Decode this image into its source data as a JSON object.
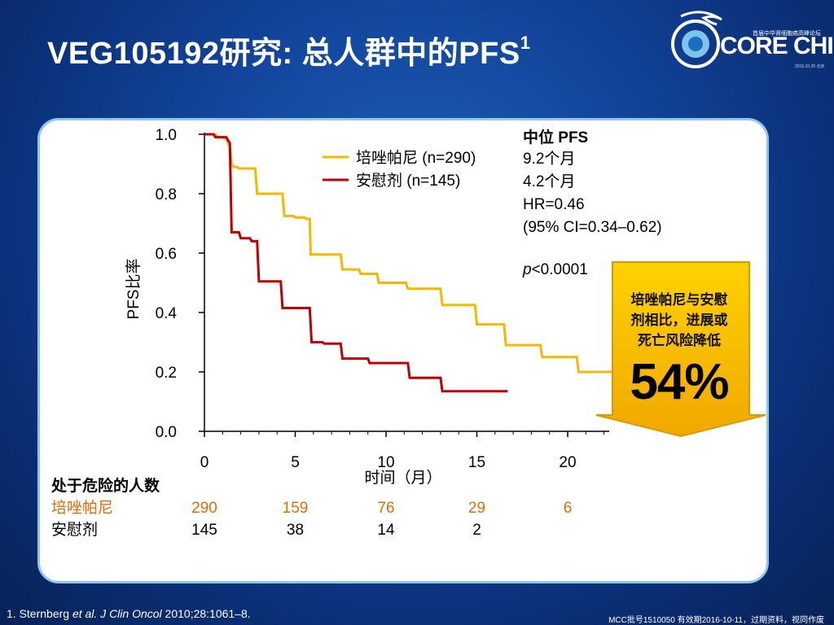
{
  "title": {
    "main": "VEG105192研究: 总人群中的PFS",
    "sup": "1"
  },
  "logo": {
    "core": "CORE CHINA",
    "sub": "首届中华肾细胞癌高峰论坛",
    "date": "2015.10.25 北京"
  },
  "colors": {
    "pazopanib": "#f5b800",
    "placebo": "#c00000",
    "orange_text": "#e36c09",
    "panel_border": "#8ec6ec"
  },
  "legend": {
    "pazopanib": "培唑帕尼 (n=290)",
    "placebo": "安慰剂  (n=145)"
  },
  "median": {
    "header": "中位 PFS",
    "pazopanib": "9.2个月",
    "placebo": "4.2个月",
    "hr": "HR=0.46",
    "ci": "(95% CI=0.34–0.62)",
    "p_italic": "p",
    "p_rest": "<0.0001"
  },
  "callout": {
    "text_line1": "培唑帕尼与安慰",
    "text_line2": "剂相比，进展或",
    "text_line3": "死亡风险降低",
    "value": "54%"
  },
  "at_risk": {
    "header": "处于危险的人数",
    "rows": [
      {
        "label": "培唑帕尼",
        "values": [
          "290",
          "159",
          "76",
          "29",
          "6"
        ]
      },
      {
        "label": "安慰剂",
        "values": [
          "145",
          "38",
          "14",
          "2"
        ]
      }
    ]
  },
  "chart_data": {
    "type": "line",
    "xlabel": "时间（月）",
    "ylabel": "PFS比率",
    "xlim": [
      0,
      22.5
    ],
    "ylim": [
      0,
      1.0
    ],
    "x_ticks": [
      "0",
      "5",
      "10",
      "15",
      "20"
    ],
    "y_ticks": [
      "0.0",
      "0.2",
      "0.4",
      "0.6",
      "0.8",
      "1.0"
    ],
    "series": [
      {
        "name": "培唑帕尼",
        "color": "#f5b800",
        "points": [
          [
            0,
            1.0
          ],
          [
            0.6,
            1.0
          ],
          [
            0.7,
            0.99
          ],
          [
            1.0,
            0.99
          ],
          [
            1.2,
            0.985
          ],
          [
            1.3,
            0.97
          ],
          [
            1.4,
            0.96
          ],
          [
            1.5,
            0.9
          ],
          [
            1.6,
            0.89
          ],
          [
            1.8,
            0.89
          ],
          [
            1.9,
            0.885
          ],
          [
            2.8,
            0.885
          ],
          [
            2.9,
            0.8
          ],
          [
            4.3,
            0.8
          ],
          [
            4.4,
            0.725
          ],
          [
            4.9,
            0.725
          ],
          [
            5.0,
            0.72
          ],
          [
            5.5,
            0.72
          ],
          [
            5.6,
            0.715
          ],
          [
            5.8,
            0.715
          ],
          [
            5.85,
            0.595
          ],
          [
            7.5,
            0.595
          ],
          [
            7.6,
            0.545
          ],
          [
            8.5,
            0.545
          ],
          [
            8.6,
            0.53
          ],
          [
            9.5,
            0.53
          ],
          [
            9.6,
            0.5
          ],
          [
            11.1,
            0.5
          ],
          [
            11.2,
            0.48
          ],
          [
            13.0,
            0.48
          ],
          [
            13.1,
            0.425
          ],
          [
            14.9,
            0.425
          ],
          [
            15.0,
            0.36
          ],
          [
            16.5,
            0.36
          ],
          [
            16.6,
            0.29
          ],
          [
            18.5,
            0.29
          ],
          [
            18.6,
            0.25
          ],
          [
            20.5,
            0.25
          ],
          [
            20.6,
            0.2
          ],
          [
            22.5,
            0.2
          ]
        ]
      },
      {
        "name": "安慰剂",
        "color": "#c00000",
        "points": [
          [
            0,
            1.0
          ],
          [
            0.5,
            1.0
          ],
          [
            0.6,
            0.99
          ],
          [
            1.2,
            0.99
          ],
          [
            1.4,
            0.97
          ],
          [
            1.5,
            0.67
          ],
          [
            1.9,
            0.67
          ],
          [
            2.0,
            0.65
          ],
          [
            2.5,
            0.65
          ],
          [
            2.6,
            0.64
          ],
          [
            2.9,
            0.64
          ],
          [
            3.0,
            0.505
          ],
          [
            4.2,
            0.505
          ],
          [
            4.3,
            0.415
          ],
          [
            5.8,
            0.415
          ],
          [
            5.9,
            0.3
          ],
          [
            6.5,
            0.3
          ],
          [
            6.6,
            0.295
          ],
          [
            7.5,
            0.295
          ],
          [
            7.6,
            0.245
          ],
          [
            9.0,
            0.245
          ],
          [
            9.1,
            0.23
          ],
          [
            11.2,
            0.23
          ],
          [
            11.3,
            0.18
          ],
          [
            13.0,
            0.18
          ],
          [
            13.1,
            0.135
          ],
          [
            16.7,
            0.135
          ]
        ]
      }
    ]
  },
  "footer": {
    "reference_pre": "1. Sternberg ",
    "reference_italic": "et al. J Clin Oncol",
    "reference_post": " 2010;28:1061–8.",
    "approval": "MCC批号1510050  有效期2016-10-11，过期资料，视同作废"
  }
}
